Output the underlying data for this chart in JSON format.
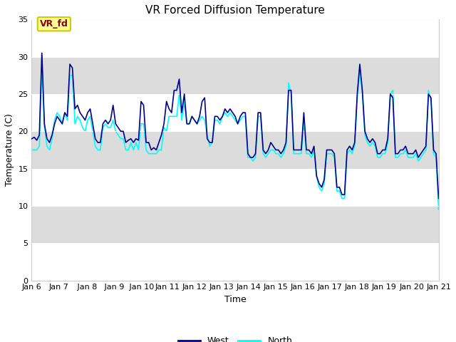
{
  "title": "VR Forced Diffusion Temperature",
  "xlabel": "Time",
  "ylabel": "Temperature (C)",
  "ylim": [
    0,
    35
  ],
  "yticks": [
    0,
    5,
    10,
    15,
    20,
    25,
    30,
    35
  ],
  "x_labels": [
    "Jan 6",
    "Jan 7",
    " Jan 8",
    " Jan 9",
    " Jan 10",
    "Jan 11",
    "Jan 12",
    "Jan 13",
    "Jan 14",
    "Jan 15",
    "Jan 16",
    "Jan 17",
    "Jan 18",
    "Jan 19",
    "Jan 20",
    "Jan 21"
  ],
  "west_color": "#00008B",
  "north_color": "#00FFFF",
  "label_box_bg": "#FFFF99",
  "label_box_edge": "#CCCC00",
  "label_box_text": "#8B0000",
  "label_text": "VR_fd",
  "legend_west": "West",
  "legend_north": "North",
  "band_color": "#DCDCDC",
  "background_color": "#FFFFFF",
  "west": [
    19.0,
    19.2,
    18.8,
    19.5,
    30.5,
    21.0,
    19.0,
    18.5,
    19.5,
    21.0,
    22.0,
    21.5,
    21.0,
    22.5,
    22.0,
    29.0,
    28.5,
    23.0,
    23.5,
    22.5,
    22.0,
    21.5,
    22.5,
    23.0,
    21.0,
    19.0,
    18.5,
    18.5,
    21.0,
    21.5,
    21.0,
    21.5,
    23.5,
    21.0,
    20.5,
    20.0,
    20.0,
    18.5,
    18.8,
    19.0,
    18.5,
    19.0,
    18.8,
    24.0,
    23.5,
    18.5,
    18.5,
    17.5,
    17.8,
    17.5,
    18.5,
    19.5,
    21.0,
    24.0,
    23.0,
    22.5,
    25.5,
    25.5,
    27.0,
    22.5,
    25.0,
    21.0,
    21.0,
    22.0,
    21.5,
    21.0,
    22.0,
    24.0,
    24.5,
    19.0,
    18.5,
    18.5,
    22.0,
    22.0,
    21.5,
    22.0,
    23.0,
    22.5,
    23.0,
    22.5,
    22.0,
    21.0,
    22.0,
    22.5,
    22.5,
    17.0,
    16.5,
    16.5,
    17.0,
    22.5,
    22.5,
    17.5,
    17.0,
    17.5,
    18.5,
    18.0,
    17.5,
    17.5,
    17.0,
    17.5,
    18.5,
    25.5,
    25.5,
    17.5,
    17.5,
    17.5,
    17.5,
    22.5,
    17.5,
    17.5,
    17.0,
    18.0,
    14.0,
    13.0,
    12.5,
    13.5,
    17.5,
    17.5,
    17.5,
    17.0,
    12.5,
    12.5,
    11.5,
    11.5,
    17.5,
    18.0,
    17.5,
    18.5,
    25.0,
    29.0,
    25.5,
    20.0,
    19.0,
    18.5,
    19.0,
    18.5,
    17.0,
    17.0,
    17.5,
    17.5,
    19.0,
    25.0,
    24.5,
    17.0,
    17.0,
    17.5,
    17.5,
    18.0,
    17.0,
    17.0,
    17.0,
    17.5,
    16.5,
    17.0,
    17.5,
    18.0,
    25.0,
    24.5,
    17.5,
    17.0,
    11.0
  ],
  "north": [
    17.5,
    17.5,
    17.5,
    18.0,
    28.5,
    20.5,
    18.0,
    17.5,
    19.0,
    21.5,
    22.5,
    22.0,
    21.0,
    22.5,
    21.5,
    27.5,
    27.5,
    21.0,
    22.0,
    21.5,
    20.5,
    20.0,
    21.5,
    22.0,
    20.0,
    18.0,
    17.5,
    17.5,
    20.5,
    21.0,
    20.5,
    20.5,
    21.5,
    20.0,
    19.5,
    19.0,
    19.0,
    17.5,
    17.5,
    18.5,
    17.5,
    18.5,
    17.5,
    21.0,
    21.0,
    17.5,
    17.0,
    17.0,
    17.0,
    17.0,
    17.5,
    17.5,
    20.5,
    20.0,
    22.0,
    22.0,
    22.0,
    22.0,
    25.0,
    21.5,
    24.0,
    21.0,
    21.0,
    22.0,
    21.5,
    21.0,
    21.5,
    22.0,
    21.5,
    19.5,
    18.0,
    18.5,
    21.5,
    21.5,
    21.0,
    22.0,
    22.5,
    22.0,
    22.5,
    22.0,
    21.5,
    21.0,
    21.5,
    22.0,
    22.0,
    16.5,
    16.5,
    16.0,
    16.5,
    22.0,
    22.0,
    17.0,
    16.5,
    17.0,
    17.5,
    17.5,
    17.0,
    17.0,
    16.5,
    17.0,
    18.0,
    26.5,
    25.0,
    17.0,
    17.0,
    17.0,
    17.0,
    21.5,
    17.0,
    17.0,
    16.5,
    17.5,
    14.0,
    12.5,
    12.0,
    13.0,
    17.0,
    17.0,
    17.0,
    16.5,
    12.0,
    12.0,
    11.0,
    11.0,
    17.0,
    17.5,
    17.0,
    18.0,
    24.5,
    28.0,
    25.0,
    19.5,
    18.5,
    18.0,
    18.5,
    18.0,
    16.5,
    16.5,
    17.0,
    17.0,
    18.5,
    25.0,
    25.5,
    16.5,
    16.5,
    17.0,
    17.0,
    17.5,
    16.5,
    16.5,
    16.5,
    17.0,
    16.0,
    16.5,
    17.0,
    17.5,
    25.5,
    24.0,
    17.0,
    16.5,
    9.5
  ]
}
